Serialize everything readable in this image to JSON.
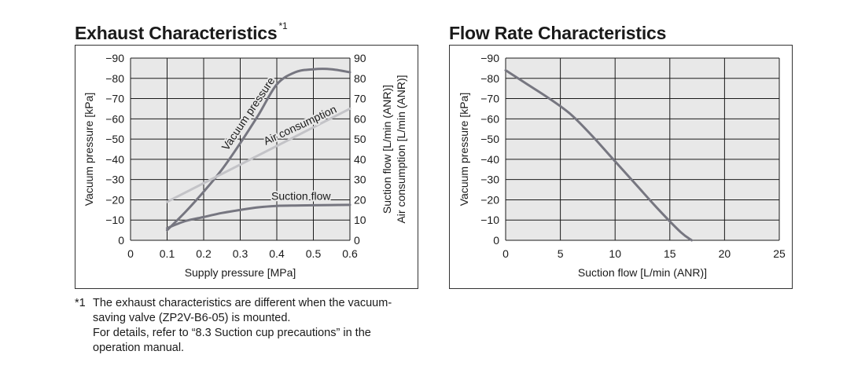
{
  "charts": {
    "exhaust": {
      "title": "Exhaust Characteristics",
      "title_note": "*1"
    },
    "flow": {
      "title": "Flow Rate Characteristics"
    }
  },
  "footnote": {
    "mark": "*1",
    "lines": [
      "The exhaust characteristics are different when the vacuum-saving valve (ZP2V-B6-05) is mounted.",
      "For details, refer to “8.3 Suction cup precautions” in the operation manual."
    ]
  },
  "colors": {
    "plot_background": "#e8e8e8",
    "grid": "#1a1a1a",
    "dark_curve": "#767680",
    "light_curve": "#c3c3c7"
  },
  "chart_data": [
    {
      "type": "line",
      "title": "Exhaust Characteristics",
      "xlabel": "Supply pressure [MPa]",
      "ylabel_left": "Vacuum pressure [kPa]",
      "ylabel_right": [
        "Suction flow [L/min (ANR)]",
        "Air consumption [L/min (ANR)]"
      ],
      "xlim": [
        0,
        0.6
      ],
      "ylim_left": [
        0,
        -90
      ],
      "ylim_right": [
        0,
        90
      ],
      "x_ticks": [
        "0",
        "0.1",
        "0.2",
        "0.3",
        "0.4",
        "0.5",
        "0.6"
      ],
      "y_ticks_left": [
        "0",
        "−10",
        "−20",
        "−30",
        "−40",
        "−50",
        "−60",
        "−70",
        "−80",
        "−90"
      ],
      "y_ticks_right": [
        "0",
        "10",
        "20",
        "30",
        "40",
        "50",
        "60",
        "70",
        "80",
        "90"
      ],
      "grid": true,
      "series": [
        {
          "name": "Vacuum pressure",
          "axis": "left",
          "color": "#767680",
          "x": [
            0.1,
            0.15,
            0.2,
            0.25,
            0.3,
            0.35,
            0.4,
            0.45,
            0.5,
            0.55,
            0.6
          ],
          "y": [
            -5,
            -14,
            -24,
            -35,
            -48,
            -62,
            -77,
            -83,
            -84.5,
            -84.5,
            -83
          ]
        },
        {
          "name": "Air consumption",
          "axis": "right",
          "color": "#c3c3c7",
          "x": [
            0.1,
            0.6
          ],
          "y": [
            19,
            65
          ]
        },
        {
          "name": "Suction flow",
          "axis": "right",
          "color": "#767680",
          "x": [
            0.1,
            0.15,
            0.2,
            0.25,
            0.3,
            0.35,
            0.4,
            0.45,
            0.5,
            0.55,
            0.6
          ],
          "y": [
            6,
            9.5,
            11.5,
            13.5,
            15,
            16.3,
            17,
            17.2,
            17.3,
            17.4,
            17.5
          ]
        }
      ]
    },
    {
      "type": "line",
      "title": "Flow Rate Characteristics",
      "xlabel": "Suction flow [L/min (ANR)]",
      "ylabel": "Vacuum pressure [kPa]",
      "xlim": [
        0,
        25
      ],
      "ylim": [
        0,
        -90
      ],
      "x_ticks": [
        "0",
        "5",
        "10",
        "15",
        "20",
        "25"
      ],
      "y_ticks": [
        "0",
        "−10",
        "−20",
        "−30",
        "−40",
        "−50",
        "−60",
        "−70",
        "−80",
        "−90"
      ],
      "grid": true,
      "series": [
        {
          "axis": "left",
          "color": "#767680",
          "x": [
            0,
            2,
            4,
            6,
            8,
            10,
            12,
            14,
            16,
            17
          ],
          "y": [
            -84,
            -77,
            -70,
            -62,
            -51,
            -39,
            -27,
            -15,
            -4,
            0
          ]
        }
      ]
    }
  ]
}
